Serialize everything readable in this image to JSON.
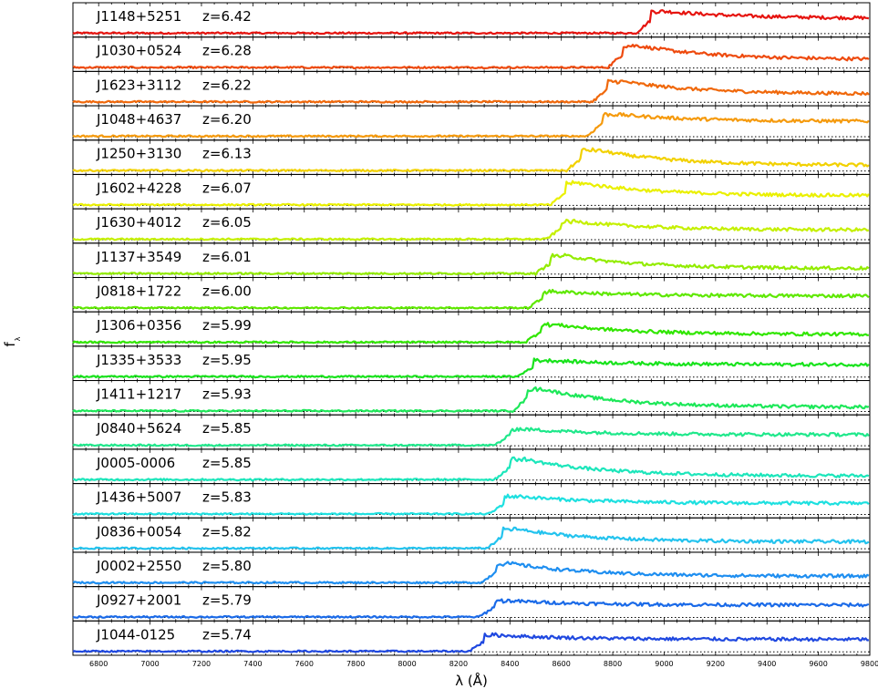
{
  "chart_data": {
    "type": "line",
    "title": "",
    "xlabel": "λ (Å)",
    "ylabel": "f",
    "ylabel_subscript": "λ",
    "xlim": [
      6700,
      9800
    ],
    "x_ticks": [
      6800,
      7000,
      7200,
      7400,
      7600,
      7800,
      8000,
      8200,
      8400,
      8600,
      8800,
      9000,
      9200,
      9400,
      9600,
      9800
    ],
    "grid": false,
    "panels": [
      {
        "name": "J1148+5251",
        "z": "z=6.42",
        "color": "#e6140f",
        "break_nm": 8950,
        "peak": 0.8,
        "cont": 0.55
      },
      {
        "name": "J1030+0524",
        "z": "z=6.28",
        "color": "#ee4a0e",
        "break_nm": 8840,
        "peak": 0.8,
        "cont": 0.3
      },
      {
        "name": "J1623+3112",
        "z": "z=6.22",
        "color": "#f0680b",
        "break_nm": 8780,
        "peak": 0.75,
        "cont": 0.3
      },
      {
        "name": "J1048+4637",
        "z": "z=6.20",
        "color": "#f59a0d",
        "break_nm": 8760,
        "peak": 0.8,
        "cont": 0.55
      },
      {
        "name": "J1250+3130",
        "z": "z=6.13",
        "color": "#f2d100",
        "break_nm": 8680,
        "peak": 0.75,
        "cont": 0.2
      },
      {
        "name": "J1602+4228",
        "z": "z=6.07",
        "color": "#eaf000",
        "break_nm": 8620,
        "peak": 0.8,
        "cont": 0.35
      },
      {
        "name": "J1630+4012",
        "z": "z=6.05",
        "color": "#c5f000",
        "break_nm": 8600,
        "peak": 0.65,
        "cont": 0.35
      },
      {
        "name": "J1137+3549",
        "z": "z=6.01",
        "color": "#93ec00",
        "break_nm": 8560,
        "peak": 0.65,
        "cont": 0.2
      },
      {
        "name": "J0818+1722",
        "z": "z=6.00",
        "color": "#5ee800",
        "break_nm": 8530,
        "peak": 0.6,
        "cont": 0.45
      },
      {
        "name": "J1306+0356",
        "z": "z=5.99",
        "color": "#31e600",
        "break_nm": 8520,
        "peak": 0.65,
        "cont": 0.3
      },
      {
        "name": "J1335+3533",
        "z": "z=5.95",
        "color": "#19e31d",
        "break_nm": 8490,
        "peak": 0.6,
        "cont": 0.45
      },
      {
        "name": "J1411+1217",
        "z": "z=5.93",
        "color": "#1de859",
        "break_nm": 8470,
        "peak": 0.8,
        "cont": 0.15
      },
      {
        "name": "J0840+5624",
        "z": "z=5.85",
        "color": "#1fe88b",
        "break_nm": 8400,
        "peak": 0.6,
        "cont": 0.4
      },
      {
        "name": "J0005-0006",
        "z": "z=5.85",
        "color": "#1ce6bb",
        "break_nm": 8400,
        "peak": 0.75,
        "cont": 0.15
      },
      {
        "name": "J1436+5007",
        "z": "z=5.83",
        "color": "#1ee0e0",
        "break_nm": 8380,
        "peak": 0.65,
        "cont": 0.4
      },
      {
        "name": "J0836+0054",
        "z": "z=5.82",
        "color": "#23c3ee",
        "break_nm": 8370,
        "peak": 0.7,
        "cont": 0.25
      },
      {
        "name": "J0002+2550",
        "z": "z=5.80",
        "color": "#1e8ef0",
        "break_nm": 8350,
        "peak": 0.7,
        "cont": 0.25
      },
      {
        "name": "J0927+2001",
        "z": "z=5.79",
        "color": "#1a6ae8",
        "break_nm": 8340,
        "peak": 0.6,
        "cont": 0.45
      },
      {
        "name": "J1044-0125",
        "z": "z=5.74",
        "color": "#1f48e0",
        "break_nm": 8300,
        "peak": 0.6,
        "cont": 0.45
      }
    ]
  }
}
